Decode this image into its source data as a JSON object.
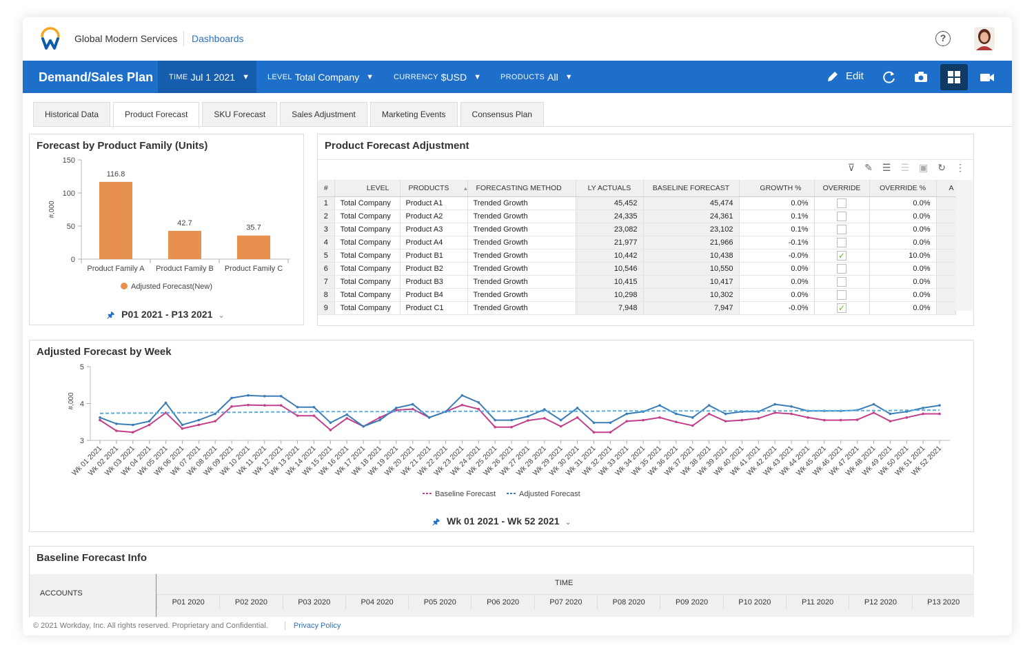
{
  "header": {
    "org_name": "Global Modern Services",
    "dashboards_link": "Dashboards",
    "help_icon": "?"
  },
  "toolbar": {
    "plan_title": "Demand/Sales Plan",
    "filters": [
      {
        "key": "TIME",
        "value": "Jul 1 2021"
      },
      {
        "key": "LEVEL",
        "value": "Total Company"
      },
      {
        "key": "CURRENCY",
        "value": "$USD"
      },
      {
        "key": "PRODUCTS",
        "value": "All"
      }
    ],
    "edit_label": "Edit",
    "icons": [
      "pencil-icon",
      "refresh-icon",
      "camera-icon",
      "grid-view-icon",
      "video-icon"
    ]
  },
  "tabs": [
    "Historical Data",
    "Product Forecast",
    "SKU Forecast",
    "Sales Adjustment",
    "Marketing Events",
    "Consensus Plan"
  ],
  "active_tab": "Product Forecast",
  "product_family_panel": {
    "title": "Forecast by Product Family (Units)",
    "range": "P01 2021 - P13 2021"
  },
  "adjustment_panel": {
    "title": "Product Forecast Adjustment",
    "columns": [
      "#",
      "LEVEL",
      "PRODUCTS",
      "FORECASTING METHOD",
      "LY ACTUALS",
      "BASELINE FORECAST",
      "GROWTH %",
      "OVERRIDE",
      "OVERRIDE %",
      "A"
    ],
    "rows": [
      {
        "n": "1",
        "level": "Total Company",
        "product": "Product A1",
        "method": "Trended Growth",
        "ly": "45,452",
        "baseline": "45,474",
        "growth": "0.0%",
        "override": "",
        "override_pct": "0.0%"
      },
      {
        "n": "2",
        "level": "Total Company",
        "product": "Product A2",
        "method": "Trended Growth",
        "ly": "24,335",
        "baseline": "24,361",
        "growth": "0.1%",
        "override": "",
        "override_pct": "0.0%"
      },
      {
        "n": "3",
        "level": "Total Company",
        "product": "Product A3",
        "method": "Trended Growth",
        "ly": "23,082",
        "baseline": "23,102",
        "growth": "0.1%",
        "override": "",
        "override_pct": "0.0%"
      },
      {
        "n": "4",
        "level": "Total Company",
        "product": "Product A4",
        "method": "Trended Growth",
        "ly": "21,977",
        "baseline": "21,966",
        "growth": "-0.1%",
        "override": "",
        "override_pct": "0.0%"
      },
      {
        "n": "5",
        "level": "Total Company",
        "product": "Product B1",
        "method": "Trended Growth",
        "ly": "10,442",
        "baseline": "10,438",
        "growth": "-0.0%",
        "override": "✓",
        "override_pct": "10.0%"
      },
      {
        "n": "6",
        "level": "Total Company",
        "product": "Product B2",
        "method": "Trended Growth",
        "ly": "10,546",
        "baseline": "10,550",
        "growth": "0.0%",
        "override": "",
        "override_pct": "0.0%"
      },
      {
        "n": "7",
        "level": "Total Company",
        "product": "Product B3",
        "method": "Trended Growth",
        "ly": "10,415",
        "baseline": "10,417",
        "growth": "0.0%",
        "override": "",
        "override_pct": "0.0%"
      },
      {
        "n": "8",
        "level": "Total Company",
        "product": "Product B4",
        "method": "Trended Growth",
        "ly": "10,298",
        "baseline": "10,302",
        "growth": "0.0%",
        "override": "",
        "override_pct": "0.0%"
      },
      {
        "n": "9",
        "level": "Total Company",
        "product": "Product C1",
        "method": "Trended Growth",
        "ly": "7,948",
        "baseline": "7,947",
        "growth": "-0.0%",
        "override": "✓",
        "override_pct": "0.0%"
      }
    ]
  },
  "weekly_panel": {
    "title": "Adjusted Forecast by Week",
    "range": "Wk 01 2021 - Wk 52 2021"
  },
  "baseline_info": {
    "title": "Baseline Forecast Info",
    "accounts_label": "ACCOUNTS",
    "time_label": "TIME",
    "periods": [
      "P01 2020",
      "P02 2020",
      "P03 2020",
      "P04 2020",
      "P05 2020",
      "P06 2020",
      "P07 2020",
      "P08 2020",
      "P09 2020",
      "P10 2020",
      "P11 2020",
      "P12 2020",
      "P13 2020"
    ]
  },
  "footer": {
    "copyright": "© 2021 Workday, Inc. All rights reserved. Proprietary and Confidential.",
    "privacy": "Privacy Policy"
  },
  "colors": {
    "brand_blue": "#1e6fc9",
    "bar_orange": "#e8914f",
    "baseline_line": "#c2408a",
    "adjusted_line": "#3a7db5",
    "adjusted_dashed": "#4fb0e8"
  },
  "chart_data": [
    {
      "type": "bar",
      "title": "Forecast by Product Family (Units)",
      "categories": [
        "Product Family A",
        "Product Family B",
        "Product Family C"
      ],
      "values": [
        116.8,
        42.7,
        35.7
      ],
      "value_labels": [
        "116.8",
        "42.7",
        "35.7"
      ],
      "ylabel": "#,000",
      "ylim": [
        0,
        150
      ],
      "yticks": [
        0,
        50,
        100,
        150
      ],
      "legend": [
        "Adjusted Forecast(New)"
      ]
    },
    {
      "type": "line",
      "title": "Adjusted Forecast by Week",
      "ylabel": "#,000",
      "ylim": [
        3,
        5
      ],
      "yticks": [
        3,
        4,
        5
      ],
      "x": [
        "Wk 01 2021",
        "Wk 02 2021",
        "Wk 03 2021",
        "Wk 04 2021",
        "Wk 05 2021",
        "Wk 06 2021",
        "Wk 07 2021",
        "Wk 08 2021",
        "Wk 09 2021",
        "Wk 10 2021",
        "Wk 11 2021",
        "Wk 12 2021",
        "Wk 13 2021",
        "Wk 14 2021",
        "Wk 15 2021",
        "Wk 16 2021",
        "Wk 17 2021",
        "Wk 18 2021",
        "Wk 19 2021",
        "Wk 20 2021",
        "Wk 21 2021",
        "Wk 22 2021",
        "Wk 23 2021",
        "Wk 24 2021",
        "Wk 25 2021",
        "Wk 26 2021",
        "Wk 27 2021",
        "Wk 28 2021",
        "Wk 29 2021",
        "Wk 30 2021",
        "Wk 31 2021",
        "Wk 32 2021",
        "Wk 33 2021",
        "Wk 34 2021",
        "Wk 35 2021",
        "Wk 36 2021",
        "Wk 37 2021",
        "Wk 38 2021",
        "Wk 39 2021",
        "Wk 40 2021",
        "Wk 41 2021",
        "Wk 42 2021",
        "Wk 43 2021",
        "Wk 44 2021",
        "Wk 45 2021",
        "Wk 46 2021",
        "Wk 47 2021",
        "Wk 48 2021",
        "Wk 49 2021",
        "Wk 50 2021",
        "Wk 51 2021",
        "Wk 52 2021"
      ],
      "series": [
        {
          "name": "Baseline Forecast",
          "style": "solid",
          "values": [
            3.55,
            3.26,
            3.22,
            3.42,
            3.75,
            3.32,
            3.42,
            3.52,
            3.92,
            3.96,
            3.95,
            3.95,
            3.67,
            3.67,
            3.28,
            3.6,
            3.38,
            3.62,
            3.82,
            3.85,
            3.62,
            3.78,
            3.96,
            3.85,
            3.36,
            3.36,
            3.54,
            3.6,
            3.38,
            3.62,
            3.22,
            3.22,
            3.52,
            3.55,
            3.62,
            3.5,
            3.4,
            3.72,
            3.52,
            3.55,
            3.6,
            3.75,
            3.72,
            3.62,
            3.55,
            3.55,
            3.56,
            3.75,
            3.52,
            3.62,
            3.72,
            3.72
          ]
        },
        {
          "name": "Adjusted Forecast",
          "style": "solid",
          "values": [
            3.62,
            3.45,
            3.42,
            3.52,
            4.02,
            3.42,
            3.55,
            3.72,
            4.15,
            4.22,
            4.2,
            4.2,
            3.9,
            3.9,
            3.48,
            3.7,
            3.38,
            3.55,
            3.88,
            3.98,
            3.62,
            3.78,
            4.22,
            4.03,
            3.55,
            3.55,
            3.65,
            3.84,
            3.55,
            3.88,
            3.48,
            3.48,
            3.72,
            3.78,
            3.95,
            3.72,
            3.62,
            3.95,
            3.72,
            3.78,
            3.78,
            3.98,
            3.92,
            3.8,
            3.8,
            3.8,
            3.82,
            3.98,
            3.72,
            3.78,
            3.88,
            3.95
          ]
        },
        {
          "name": "Adjusted Forecast (trend)",
          "style": "dashed",
          "values": [
            3.73,
            3.74,
            3.74,
            3.74,
            3.75,
            3.75,
            3.75,
            3.76,
            3.76,
            3.76,
            3.77,
            3.77,
            3.77,
            3.78,
            3.78,
            3.78,
            3.78,
            3.78,
            3.78,
            3.78,
            3.78,
            3.78,
            3.79,
            3.79,
            3.79,
            3.79,
            3.79,
            3.79,
            3.79,
            3.79,
            3.79,
            3.8,
            3.8,
            3.8,
            3.8,
            3.8,
            3.8,
            3.8,
            3.8,
            3.8,
            3.8,
            3.8,
            3.8,
            3.81,
            3.81,
            3.81,
            3.81,
            3.81,
            3.81,
            3.82,
            3.82,
            3.82
          ]
        }
      ],
      "legend": [
        "Baseline Forecast",
        "Adjusted Forecast"
      ],
      "legend_position": "bottom-center"
    }
  ]
}
